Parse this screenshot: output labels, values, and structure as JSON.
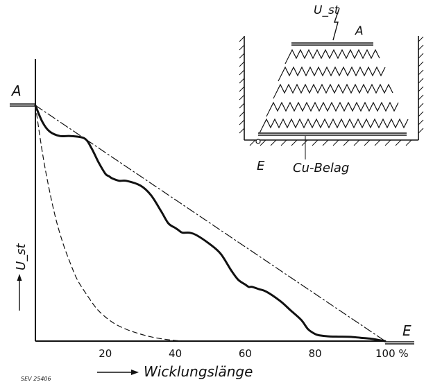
{
  "chart_data": {
    "type": "line",
    "title": "",
    "xlabel": "Wicklungslänge",
    "ylabel": "U_st",
    "x_unit": "%",
    "xlim": [
      0,
      100
    ],
    "ylim": [
      0,
      100
    ],
    "x_ticks": [
      "20",
      "40",
      "60",
      "80",
      "100"
    ],
    "labels": {
      "start": "A",
      "end": "E"
    },
    "series": [
      {
        "style": "solid-thick",
        "x": [
          0,
          2,
          4,
          7,
          10,
          14,
          16,
          18,
          20,
          21,
          22,
          24,
          26,
          30,
          33,
          36,
          38,
          40,
          41,
          42,
          44,
          46,
          50,
          53,
          56,
          58,
          60,
          61,
          62,
          64,
          66,
          70,
          73,
          76,
          78,
          80,
          81,
          82,
          84,
          86,
          90,
          93,
          96,
          98,
          100
        ],
        "y": [
          100,
          93,
          89,
          87,
          87,
          86,
          82,
          76,
          71,
          70,
          69,
          68,
          68,
          66,
          62,
          55,
          50,
          48,
          47,
          46,
          46,
          45,
          41,
          37,
          30,
          26,
          24,
          23,
          23,
          22,
          21,
          17,
          13,
          9,
          5,
          3,
          2.5,
          2.3,
          2,
          1.9,
          1.8,
          1.4,
          1,
          0.5,
          0
        ]
      },
      {
        "style": "dash-dot",
        "x": [
          0,
          100
        ],
        "y": [
          100,
          0
        ]
      },
      {
        "style": "dashed",
        "x": [
          0,
          2,
          4,
          6,
          8,
          10,
          12,
          15,
          18,
          22,
          26,
          30,
          34,
          38,
          42
        ],
        "y": [
          100,
          80,
          64,
          51,
          41,
          33,
          26,
          19,
          13,
          8,
          5,
          3,
          1.5,
          0.6,
          0
        ]
      }
    ],
    "grid": false,
    "legend": "none"
  },
  "inset": {
    "voltage_label": "U_st",
    "top_label": "A",
    "ground_label": "E",
    "belag_label": "Cu-Belag"
  },
  "footnote": "SEV 25406"
}
